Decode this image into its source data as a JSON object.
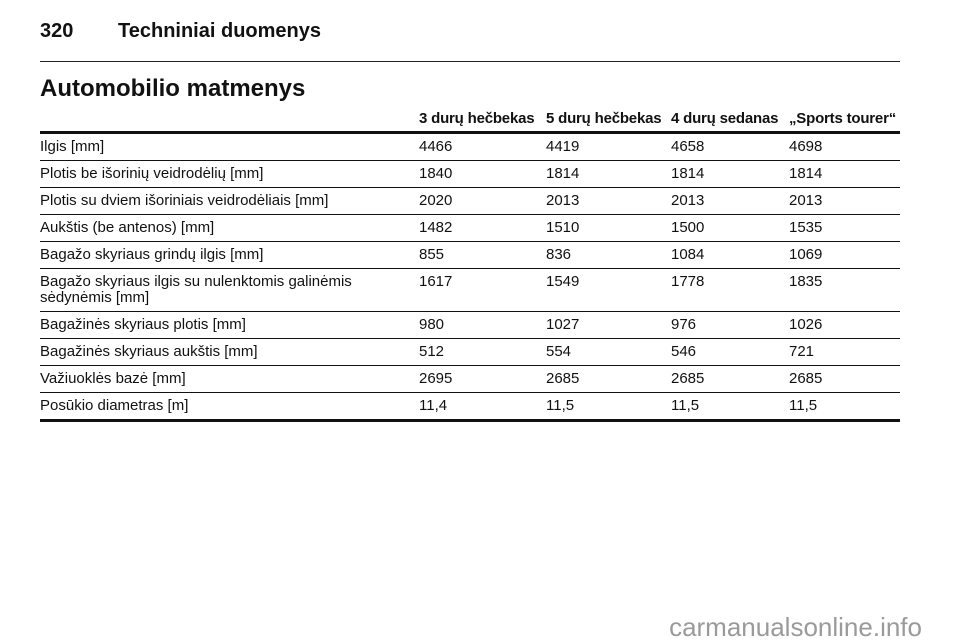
{
  "header": {
    "page_number": "320",
    "title": "Techniniai duomenys"
  },
  "section_title": "Automobilio matmenys",
  "table": {
    "columns": [
      "",
      "3 durų hečbekas",
      "5 durų hečbekas",
      "4 durų sedanas",
      "„Sports tourer“"
    ],
    "rows": [
      [
        "Ilgis [mm]",
        "4466",
        "4419",
        "4658",
        "4698"
      ],
      [
        "Plotis be išorinių veidrodėlių [mm]",
        "1840",
        "1814",
        "1814",
        "1814"
      ],
      [
        "Plotis su dviem išoriniais veidrodėliais [mm]",
        "2020",
        "2013",
        "2013",
        "2013"
      ],
      [
        "Aukštis (be antenos) [mm]",
        "1482",
        "1510",
        "1500",
        "1535"
      ],
      [
        "Bagažo skyriaus grindų ilgis [mm]",
        "855",
        "836",
        "1084",
        "1069"
      ],
      [
        "Bagažo skyriaus ilgis su nulenktomis galinėmis sėdynėmis [mm]",
        "1617",
        "1549",
        "1778",
        "1835"
      ],
      [
        "Bagažinės skyriaus plotis [mm]",
        "980",
        "1027",
        "976",
        "1026"
      ],
      [
        "Bagažinės skyriaus aukštis [mm]",
        "512",
        "554",
        "546",
        "721"
      ],
      [
        "Važiuoklės bazė [mm]",
        "2695",
        "2685",
        "2685",
        "2685"
      ],
      [
        "Posūkio diametras [m]",
        "11,4",
        "11,5",
        "11,5",
        "11,5"
      ]
    ]
  },
  "watermark": "carmanualsonline.info"
}
